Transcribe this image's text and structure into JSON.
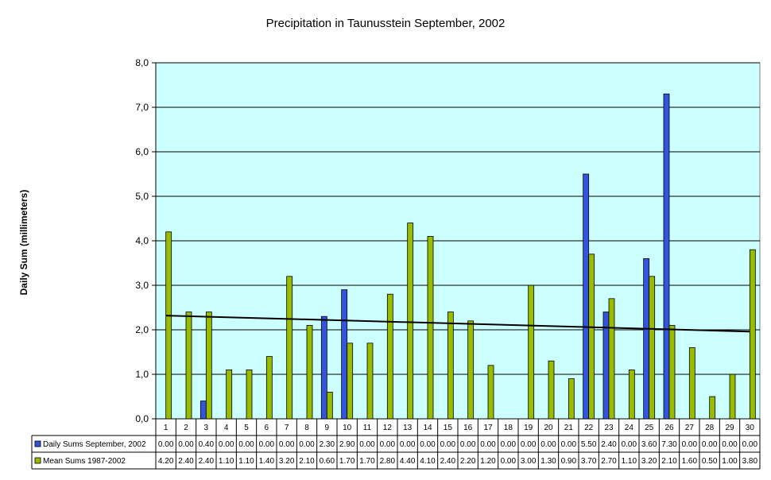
{
  "chart_data": {
    "type": "bar",
    "title": "Precipitation in Taunusstein September, 2002",
    "xlabel": "",
    "ylabel": "Daily Sum (millimeters)",
    "ylim": [
      0,
      8
    ],
    "yticks": [
      "0,0",
      "1,0",
      "2,0",
      "3,0",
      "4,0",
      "5,0",
      "6,0",
      "7,0",
      "8,0"
    ],
    "categories": [
      "1",
      "2",
      "3",
      "4",
      "5",
      "6",
      "7",
      "8",
      "9",
      "10",
      "11",
      "12",
      "13",
      "14",
      "15",
      "16",
      "17",
      "18",
      "19",
      "20",
      "21",
      "22",
      "23",
      "24",
      "25",
      "26",
      "27",
      "28",
      "29",
      "30"
    ],
    "series": [
      {
        "name": "Daily Sums September, 2002",
        "color": "#3355dd",
        "values": [
          0.0,
          0.0,
          0.4,
          0.0,
          0.0,
          0.0,
          0.0,
          0.0,
          2.3,
          2.9,
          0.0,
          0.0,
          0.0,
          0.0,
          0.0,
          0.0,
          0.0,
          0.0,
          0.0,
          0.0,
          0.0,
          5.5,
          2.4,
          0.0,
          3.6,
          7.3,
          0.0,
          0.0,
          0.0,
          0.0
        ],
        "labels": [
          "0.00",
          "0.00",
          "0.40",
          "0.00",
          "0.00",
          "0.00",
          "0.00",
          "0.00",
          "2.30",
          "2.90",
          "0.00",
          "0.00",
          "0.00",
          "0.00",
          "0.00",
          "0.00",
          "0.00",
          "0.00",
          "0.00",
          "0.00",
          "0.00",
          "5.50",
          "2.40",
          "0.00",
          "3.60",
          "7.30",
          "0.00",
          "0.00",
          "0.00",
          "0.00"
        ]
      },
      {
        "name": "Mean Sums 1987-2002",
        "color": "#99bb00",
        "values": [
          4.2,
          2.4,
          2.4,
          1.1,
          1.1,
          1.4,
          3.2,
          2.1,
          0.6,
          1.7,
          1.7,
          2.8,
          4.4,
          4.1,
          2.4,
          2.2,
          1.2,
          0.0,
          3.0,
          1.3,
          0.9,
          3.7,
          2.7,
          1.1,
          3.2,
          2.1,
          1.6,
          0.5,
          1.0,
          3.8
        ],
        "labels": [
          "4.20",
          "2.40",
          "2.40",
          "1.10",
          "1.10",
          "1.40",
          "3.20",
          "2.10",
          "0.60",
          "1.70",
          "1.70",
          "2.80",
          "4.40",
          "4.10",
          "2.40",
          "2.20",
          "1.20",
          "0.00",
          "3.00",
          "1.30",
          "0.90",
          "3.70",
          "2.70",
          "1.10",
          "3.20",
          "2.10",
          "1.60",
          "0.50",
          "1.00",
          "3.80"
        ]
      }
    ],
    "trendline": {
      "series": "Mean Sums 1987-2002",
      "start": 2.32,
      "end": 1.96,
      "color": "#000000"
    },
    "plot_background": "#ccffff",
    "grid": true,
    "legend": "data-table"
  }
}
